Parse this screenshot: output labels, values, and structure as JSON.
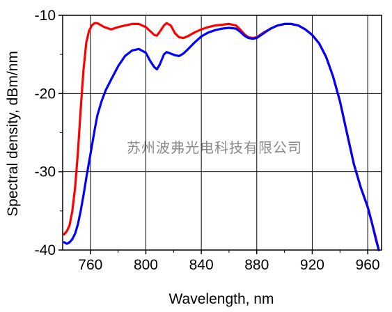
{
  "chart_data": {
    "type": "line",
    "xlabel": "Wavelength, nm",
    "ylabel": "Spectral density, dBm/nm",
    "xlim": [
      740,
      970
    ],
    "ylim": [
      -40,
      -10
    ],
    "x_ticks": [
      760,
      800,
      840,
      880,
      920,
      960
    ],
    "y_ticks": [
      -10,
      -20,
      -30,
      -40
    ],
    "grid": true,
    "legend": "none",
    "series": [
      {
        "color": "#ff0000",
        "points": [
          [
            741,
            -38.0
          ],
          [
            743,
            -37.6
          ],
          [
            745,
            -36.8
          ],
          [
            747,
            -35.0
          ],
          [
            749,
            -32.0
          ],
          [
            751,
            -27.5
          ],
          [
            753,
            -22.0
          ],
          [
            755,
            -17.0
          ],
          [
            757,
            -13.5
          ],
          [
            759,
            -12.0
          ],
          [
            761,
            -11.3
          ],
          [
            763,
            -11.0
          ],
          [
            765,
            -11.0
          ],
          [
            767,
            -11.2
          ],
          [
            770,
            -11.5
          ],
          [
            775,
            -11.8
          ],
          [
            780,
            -11.5
          ],
          [
            785,
            -11.3
          ],
          [
            790,
            -11.1
          ],
          [
            795,
            -11.1
          ],
          [
            800,
            -11.5
          ],
          [
            803,
            -12.0
          ],
          [
            806,
            -12.5
          ],
          [
            808,
            -12.6
          ],
          [
            810,
            -12.1
          ],
          [
            813,
            -11.3
          ],
          [
            815,
            -11.0
          ],
          [
            818,
            -11.3
          ],
          [
            821,
            -12.3
          ],
          [
            824,
            -12.8
          ],
          [
            827,
            -12.9
          ],
          [
            830,
            -12.7
          ],
          [
            835,
            -12.2
          ],
          [
            840,
            -11.8
          ],
          [
            845,
            -11.5
          ],
          [
            850,
            -11.3
          ],
          [
            855,
            -11.2
          ],
          [
            860,
            -11.1
          ],
          [
            865,
            -11.3
          ],
          [
            868,
            -11.8
          ],
          [
            871,
            -12.4
          ],
          [
            874,
            -12.8
          ],
          [
            877,
            -12.9
          ],
          [
            880,
            -12.8
          ],
          [
            885,
            -12.2
          ],
          [
            890,
            -11.7
          ],
          [
            895,
            -11.3
          ],
          [
            900,
            -11.1
          ],
          [
            905,
            -11.1
          ],
          [
            910,
            -11.3
          ],
          [
            915,
            -11.8
          ],
          [
            920,
            -12.5
          ],
          [
            925,
            -13.6
          ],
          [
            930,
            -15.3
          ],
          [
            935,
            -17.8
          ],
          [
            940,
            -21.0
          ],
          [
            945,
            -25.0
          ],
          [
            950,
            -29.0
          ],
          [
            955,
            -32.0
          ],
          [
            960,
            -34.5
          ],
          [
            963,
            -36.5
          ],
          [
            966,
            -38.5
          ],
          [
            968,
            -40.0
          ]
        ]
      },
      {
        "color": "#0000ff",
        "points": [
          [
            741,
            -39.0
          ],
          [
            743,
            -39.2
          ],
          [
            745,
            -39.0
          ],
          [
            747,
            -38.6
          ],
          [
            749,
            -37.9
          ],
          [
            751,
            -36.7
          ],
          [
            753,
            -35.0
          ],
          [
            755,
            -33.0
          ],
          [
            757,
            -30.8
          ],
          [
            759,
            -28.8
          ],
          [
            761,
            -26.8
          ],
          [
            763,
            -24.7
          ],
          [
            765,
            -22.8
          ],
          [
            768,
            -21.0
          ],
          [
            771,
            -19.6
          ],
          [
            775,
            -18.2
          ],
          [
            780,
            -16.5
          ],
          [
            785,
            -15.2
          ],
          [
            790,
            -14.5
          ],
          [
            795,
            -14.3
          ],
          [
            800,
            -14.8
          ],
          [
            803,
            -15.8
          ],
          [
            806,
            -16.6
          ],
          [
            808,
            -16.9
          ],
          [
            810,
            -16.3
          ],
          [
            813,
            -15.0
          ],
          [
            815,
            -14.7
          ],
          [
            818,
            -14.9
          ],
          [
            821,
            -15.1
          ],
          [
            824,
            -15.2
          ],
          [
            827,
            -14.9
          ],
          [
            830,
            -14.4
          ],
          [
            835,
            -13.5
          ],
          [
            840,
            -12.7
          ],
          [
            845,
            -12.2
          ],
          [
            850,
            -11.9
          ],
          [
            855,
            -11.7
          ],
          [
            860,
            -11.6
          ],
          [
            865,
            -11.7
          ],
          [
            868,
            -12.1
          ],
          [
            871,
            -12.6
          ],
          [
            874,
            -12.9
          ],
          [
            877,
            -13.0
          ],
          [
            880,
            -12.9
          ],
          [
            885,
            -12.3
          ],
          [
            890,
            -11.7
          ],
          [
            895,
            -11.3
          ],
          [
            900,
            -11.1
          ],
          [
            905,
            -11.1
          ],
          [
            910,
            -11.3
          ],
          [
            915,
            -11.8
          ],
          [
            920,
            -12.5
          ],
          [
            925,
            -13.6
          ],
          [
            930,
            -15.3
          ],
          [
            935,
            -17.8
          ],
          [
            940,
            -21.0
          ],
          [
            945,
            -25.0
          ],
          [
            950,
            -29.0
          ],
          [
            955,
            -32.0
          ],
          [
            960,
            -34.5
          ],
          [
            963,
            -36.5
          ],
          [
            966,
            -38.7
          ],
          [
            968,
            -40.0
          ]
        ]
      }
    ]
  },
  "watermark": "苏州波弗光电科技有限公司"
}
